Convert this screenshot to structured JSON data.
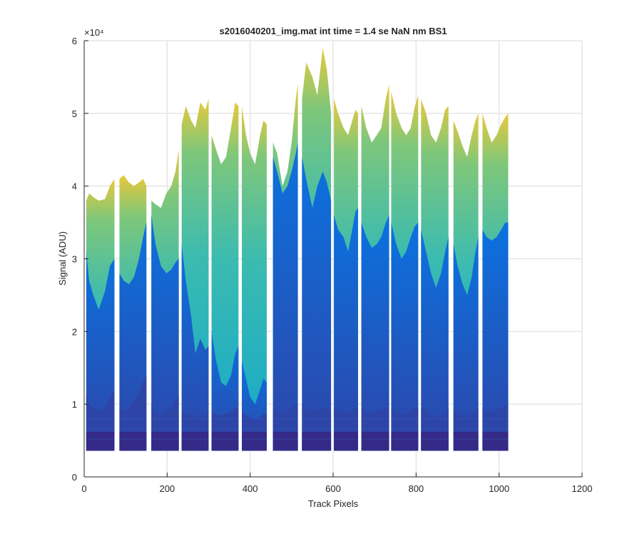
{
  "chart_data": {
    "type": "area",
    "title": "s2016040201_img.mat int time = 1.4 se  NaN nm BS1",
    "xlabel": "Track Pixels",
    "ylabel": "Signal (ADU)",
    "xlim": [
      0,
      1200
    ],
    "ylim": [
      0,
      60000
    ],
    "x_ticks": [
      0,
      200,
      400,
      600,
      800,
      1000,
      1200
    ],
    "x_tick_labels": [
      "0",
      "200",
      "400",
      "600",
      "800",
      "1000",
      "1200"
    ],
    "y_ticks": [
      0,
      10000,
      20000,
      30000,
      40000,
      50000,
      60000
    ],
    "y_tick_labels": [
      "0",
      "1",
      "2",
      "3",
      "4",
      "5",
      "6"
    ],
    "y_exponent_label": "×10⁴",
    "grid": true,
    "baseline": 3600,
    "colors": {
      "floor": "#352a87",
      "dark_blue": "#2e45a8",
      "blue": "#1f65c8",
      "bright_blue": "#0b72e0",
      "cyan": "#13a8cc",
      "teal": "#3bbbb0",
      "green": "#7fc77a",
      "yellow": "#e8c93a",
      "grid": "#e5e5e5",
      "axis": "#262626"
    },
    "segments": [
      {
        "x_start": 5,
        "x_end": 73,
        "x": [
          5,
          12,
          22,
          35,
          50,
          62,
          73
        ],
        "upper": [
          38000,
          39000,
          38500,
          38000,
          38200,
          40000,
          41000
        ],
        "mid": [
          31000,
          27000,
          25000,
          23000,
          25500,
          29000,
          30000
        ],
        "lower": [
          11500,
          10000,
          9500,
          9000,
          9500,
          11000,
          12000
        ]
      },
      {
        "x_start": 85,
        "x_end": 150,
        "x": [
          85,
          95,
          108,
          120,
          132,
          142,
          150
        ],
        "upper": [
          41000,
          41500,
          40500,
          40000,
          40500,
          41000,
          40000
        ],
        "mid": [
          28000,
          27000,
          26500,
          27500,
          30000,
          33000,
          35000
        ],
        "lower": [
          9500,
          9000,
          9500,
          10500,
          11500,
          13000,
          14000
        ]
      },
      {
        "x_start": 162,
        "x_end": 228,
        "x": [
          162,
          172,
          185,
          198,
          210,
          220,
          228
        ],
        "upper": [
          38000,
          37500,
          37000,
          39000,
          40000,
          42000,
          45000
        ],
        "mid": [
          36000,
          32000,
          29000,
          28000,
          28500,
          29500,
          30000
        ],
        "lower": [
          10000,
          9000,
          8500,
          9000,
          9500,
          10500,
          11000
        ]
      },
      {
        "x_start": 235,
        "x_end": 300,
        "x": [
          235,
          245,
          258,
          268,
          280,
          292,
          300
        ],
        "upper": [
          48500,
          51000,
          49000,
          48000,
          51500,
          50500,
          52000
        ],
        "mid": [
          32000,
          27000,
          22000,
          17000,
          19000,
          17500,
          18000
        ],
        "lower": [
          9000,
          8800,
          8500,
          8000,
          8500,
          8500,
          9000
        ]
      },
      {
        "x_start": 307,
        "x_end": 372,
        "x": [
          307,
          318,
          330,
          342,
          354,
          364,
          372
        ],
        "upper": [
          47000,
          45000,
          43000,
          44000,
          48000,
          51500,
          51000
        ],
        "mid": [
          20000,
          16000,
          13000,
          12500,
          14000,
          17000,
          18000
        ],
        "lower": [
          9000,
          8500,
          8500,
          8700,
          9000,
          9500,
          9500
        ]
      },
      {
        "x_start": 380,
        "x_end": 440,
        "x": [
          380,
          390,
          400,
          412,
          424,
          432,
          440
        ],
        "upper": [
          51000,
          47000,
          44500,
          43000,
          47000,
          49000,
          48500
        ],
        "mid": [
          16000,
          13500,
          11000,
          10000,
          12000,
          13500,
          13000
        ],
        "lower": [
          9000,
          8500,
          8200,
          8000,
          8300,
          8700,
          8500
        ]
      },
      {
        "x_start": 455,
        "x_end": 515,
        "x": [
          455,
          465,
          478,
          490,
          500,
          510,
          515
        ],
        "upper": [
          46000,
          44500,
          40000,
          42000,
          46000,
          52000,
          54000
        ],
        "mid": [
          44000,
          42000,
          39000,
          40000,
          42000,
          44500,
          46000
        ],
        "lower": [
          9500,
          9000,
          8500,
          9000,
          9500,
          10000,
          10000
        ]
      },
      {
        "x_start": 525,
        "x_end": 595,
        "x": [
          525,
          535,
          550,
          562,
          575,
          585,
          595
        ],
        "upper": [
          52000,
          57000,
          55000,
          52500,
          59000,
          56000,
          50000
        ],
        "mid": [
          44000,
          41000,
          37000,
          40000,
          42000,
          40500,
          38000
        ],
        "lower": [
          10000,
          9500,
          9000,
          9200,
          9500,
          9500,
          9000
        ]
      },
      {
        "x_start": 602,
        "x_end": 660,
        "x": [
          602,
          612,
          625,
          636,
          646,
          654,
          660
        ],
        "upper": [
          52000,
          50000,
          48000,
          47000,
          49000,
          50500,
          50000
        ],
        "mid": [
          36000,
          34000,
          33000,
          31000,
          34000,
          36500,
          37000
        ],
        "lower": [
          9500,
          9000,
          9000,
          8800,
          9000,
          9500,
          9500
        ]
      },
      {
        "x_start": 668,
        "x_end": 735,
        "x": [
          668,
          680,
          693,
          705,
          716,
          727,
          735
        ],
        "upper": [
          51000,
          48000,
          46000,
          47000,
          48000,
          52000,
          54000
        ],
        "mid": [
          35000,
          33000,
          31500,
          32000,
          33000,
          35000,
          36000
        ],
        "lower": [
          9500,
          9000,
          8800,
          9000,
          9200,
          9500,
          9500
        ]
      },
      {
        "x_start": 740,
        "x_end": 805,
        "x": [
          740,
          752,
          765,
          776,
          787,
          797,
          805
        ],
        "upper": [
          53000,
          50000,
          48000,
          47000,
          48000,
          51000,
          52500
        ],
        "mid": [
          35000,
          32000,
          30000,
          31000,
          33000,
          34500,
          35000
        ],
        "lower": [
          9500,
          9000,
          8500,
          8800,
          9000,
          9500,
          9500
        ]
      },
      {
        "x_start": 812,
        "x_end": 878,
        "x": [
          812,
          824,
          836,
          848,
          860,
          870,
          878
        ],
        "upper": [
          52000,
          50000,
          47000,
          46000,
          48000,
          50500,
          51000
        ],
        "mid": [
          34000,
          31000,
          28000,
          26000,
          28000,
          31000,
          33000
        ],
        "lower": [
          9500,
          9000,
          8500,
          8300,
          8500,
          9000,
          9500
        ]
      },
      {
        "x_start": 890,
        "x_end": 950,
        "x": [
          890,
          900,
          912,
          923,
          934,
          943,
          950
        ],
        "upper": [
          49000,
          47500,
          45500,
          44000,
          47000,
          49000,
          50000
        ],
        "mid": [
          32000,
          29000,
          26500,
          25000,
          27500,
          31000,
          33000
        ],
        "lower": [
          9000,
          8800,
          8500,
          8300,
          8500,
          9000,
          9500
        ]
      },
      {
        "x_start": 960,
        "x_end": 1022,
        "x": [
          960,
          970,
          982,
          994,
          1005,
          1015,
          1022
        ],
        "upper": [
          50000,
          48000,
          46000,
          47000,
          48500,
          49500,
          50000
        ],
        "mid": [
          34000,
          33000,
          32500,
          33000,
          34000,
          35000,
          35000
        ],
        "lower": [
          9500,
          9000,
          9000,
          9200,
          9500,
          9800,
          10000
        ]
      }
    ]
  }
}
